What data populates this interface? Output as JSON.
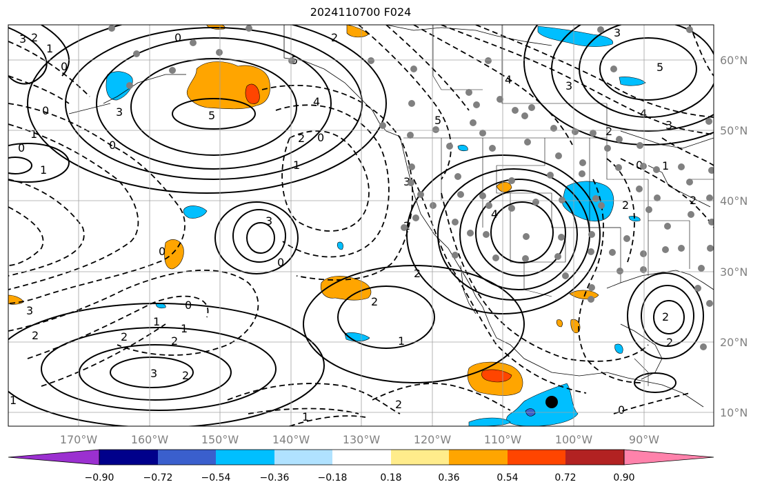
{
  "title": "2024110700 F024",
  "longitude_labels": [
    "170°W",
    "160°W",
    "150°W",
    "140°W",
    "130°W",
    "120°W",
    "110°W",
    "100°W",
    "90°W"
  ],
  "latitude_labels": [
    "60°N",
    "50°N",
    "40°N",
    "30°N",
    "20°N",
    "10°N"
  ],
  "colorbar": {
    "tick_labels": [
      "−0.90",
      "−0.72",
      "−0.54",
      "−0.36",
      "−0.18",
      "0.18",
      "0.36",
      "0.54",
      "0.72",
      "0.90"
    ],
    "colors": [
      "#9b30d0",
      "#00008b",
      "#3a5fcd",
      "#00bfff",
      "#b0e2ff",
      "#ffffff",
      "#ffec8b",
      "#ffa500",
      "#ff4500",
      "#b22222",
      "#ff82ab"
    ]
  },
  "contour_labels": {
    "c1": "3",
    "c2": "2",
    "c3": "1",
    "c4": "0",
    "c5": "0",
    "c6": "5",
    "c7": "3",
    "c8": "5",
    "c9": "4",
    "c10": "2",
    "c11": "0",
    "c12": "1",
    "c13": "0",
    "c14": "1",
    "c15": "0",
    "c16": "1",
    "c17": "3",
    "c18": "0",
    "c19": "3",
    "c20": "2",
    "c21": "1",
    "c22": "0",
    "c23": "2",
    "c24": "1",
    "c25": "3",
    "c26": "2",
    "c27": "2",
    "c28": "2",
    "c29": "1",
    "c30": "2",
    "c31": "5",
    "c32": "4",
    "c33": "3",
    "c34": "2",
    "c35": "4",
    "c36": "3",
    "c37": "5",
    "c38": "4",
    "c39": "3",
    "c40": "2",
    "c41": "1",
    "c42": "0",
    "c43": "2",
    "c44": "2",
    "c45": "2",
    "c46": "2",
    "c47": "0",
    "c48": "1",
    "c49": "0",
    "c50": "2",
    "c51": "3",
    "c52": "0",
    "c53": "2",
    "c54": "1"
  },
  "colors": {
    "ocean": "#ffffff",
    "contour": "#000000",
    "grid": "#a0a0a0",
    "station": "#808080",
    "marker": "#000000"
  }
}
